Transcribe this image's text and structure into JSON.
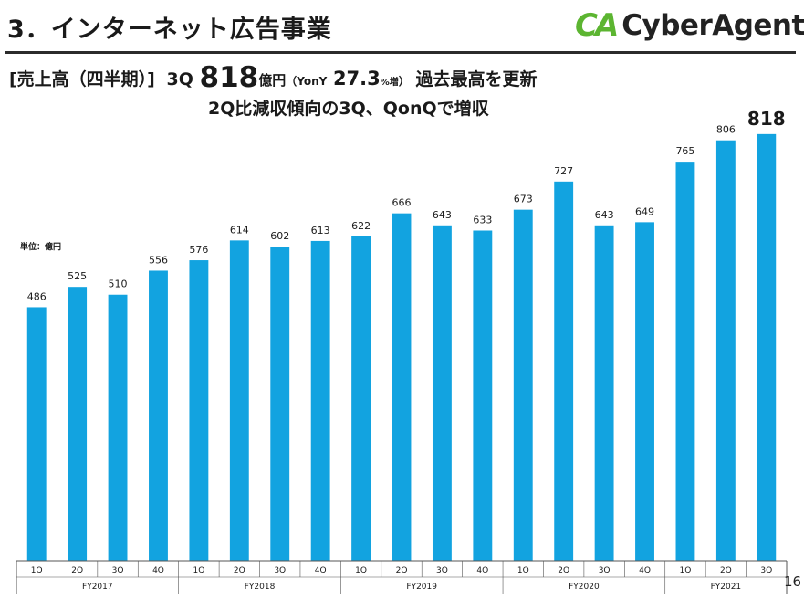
{
  "header": {
    "title": "3．インターネット広告事業",
    "logo_mark": "CA",
    "logo_text": "CyberAgent",
    "logo_reg": "®"
  },
  "headline": {
    "bracket": "[売上高（四半期）]",
    "quarter": "3Q",
    "value": "818",
    "unit": "億円",
    "yoy_open": "（YonY",
    "yoy_value": "27.3",
    "yoy_unit": "%増",
    "yoy_close": "）",
    "record": "過去最高を更新",
    "line2": "2Q比減収傾向の3Q、QonQで増収"
  },
  "unit_label": "単位：億円",
  "page_number": "16",
  "colors": {
    "bar": "#12a3e0",
    "axis": "#555555",
    "text": "#1a1a1a"
  },
  "chart_data": {
    "type": "bar",
    "categories": [
      "1Q",
      "2Q",
      "3Q",
      "4Q",
      "1Q",
      "2Q",
      "3Q",
      "4Q",
      "1Q",
      "2Q",
      "3Q",
      "4Q",
      "1Q",
      "2Q",
      "3Q",
      "4Q",
      "1Q",
      "2Q",
      "3Q"
    ],
    "values": [
      486,
      525,
      510,
      556,
      576,
      614,
      602,
      613,
      622,
      666,
      643,
      633,
      673,
      727,
      643,
      649,
      765,
      806,
      818
    ],
    "groups": [
      {
        "label": "FY2017",
        "count": 4
      },
      {
        "label": "FY2018",
        "count": 4
      },
      {
        "label": "FY2019",
        "count": 4
      },
      {
        "label": "FY2020",
        "count": 4
      },
      {
        "label": "FY2021",
        "count": 3
      }
    ],
    "data_labels": [
      "486",
      "525",
      "510",
      "556",
      "576",
      "614",
      "602",
      "613",
      "622",
      "666",
      "643",
      "633",
      "673",
      "727",
      "643",
      "649",
      "765",
      "806",
      "818"
    ],
    "highlight_last": true,
    "ylim": [
      0,
      830
    ],
    "grid": false,
    "legend": "none"
  }
}
